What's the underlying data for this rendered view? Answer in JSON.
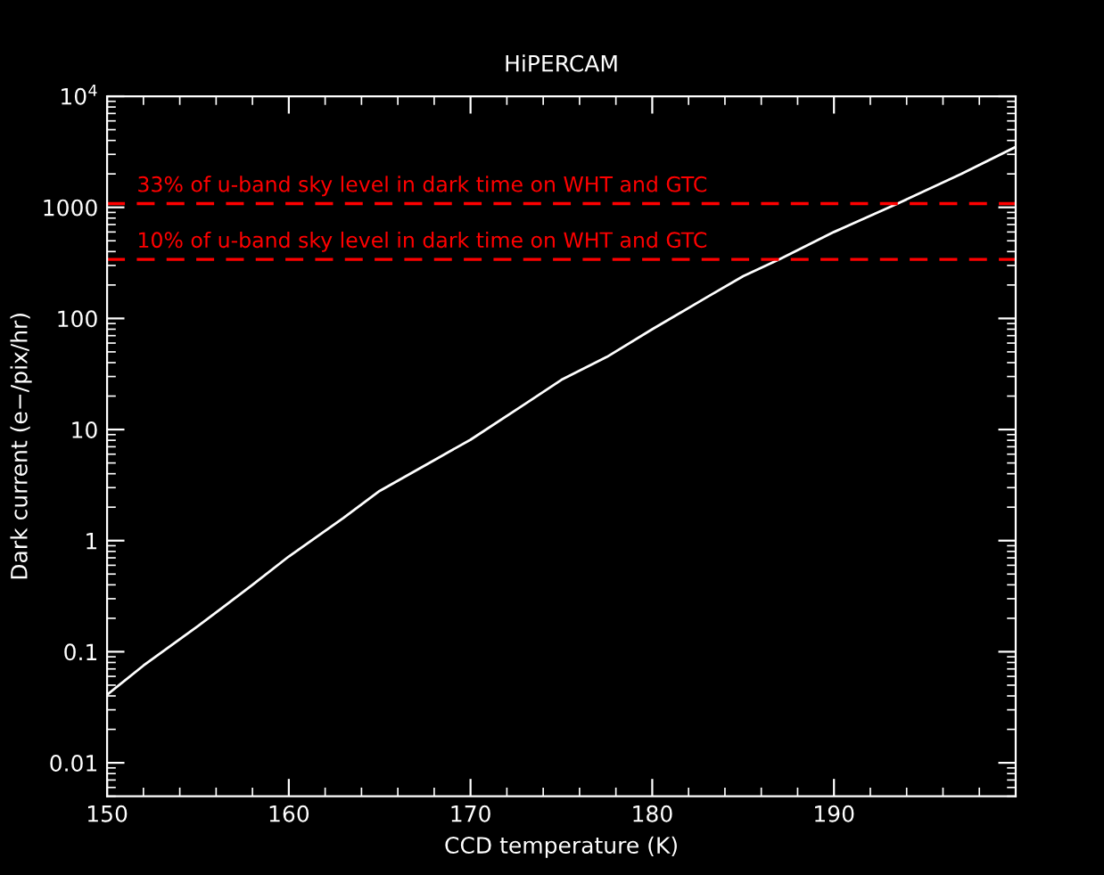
{
  "chart_data": {
    "type": "line",
    "title": "HiPERCAM",
    "xlabel": "CCD temperature (K)",
    "ylabel": "Dark current (e−/pix/hr)",
    "x": [
      150,
      152,
      155,
      158,
      160,
      163,
      165,
      168,
      170,
      173,
      175,
      177.5,
      180,
      183,
      185,
      187,
      190,
      193.5,
      197,
      200
    ],
    "series": [
      {
        "color": "#ffffff",
        "values": [
          0.041,
          0.075,
          0.17,
          0.4,
          0.72,
          1.6,
          2.8,
          5.3,
          8.1,
          17,
          28,
          45,
          80,
          155,
          240,
          340,
          600,
          1080,
          2000,
          3500
        ]
      }
    ],
    "log": "y",
    "xlim": [
      150,
      200
    ],
    "ylim": [
      0.005,
      10000
    ],
    "xticks": [
      150,
      160,
      170,
      180,
      190
    ],
    "yticks": [
      0.01,
      0.1,
      1,
      10,
      100,
      1000,
      {
        "value": 10000,
        "label": "10$^{4}$"
      }
    ],
    "ref_lines": [
      {
        "axis": "y",
        "value": 1080,
        "label": "33% of u-band sky level in dark time on WHT and GTC",
        "color": "#ff0000",
        "line_style": "dashed"
      },
      {
        "axis": "y",
        "value": 340,
        "label": "10% of u-band sky level in dark time on WHT and GTC",
        "color": "#ff0000",
        "line_style": "dashed"
      }
    ],
    "grid": false,
    "legend": false,
    "marker": "none",
    "line_style": "solid"
  }
}
